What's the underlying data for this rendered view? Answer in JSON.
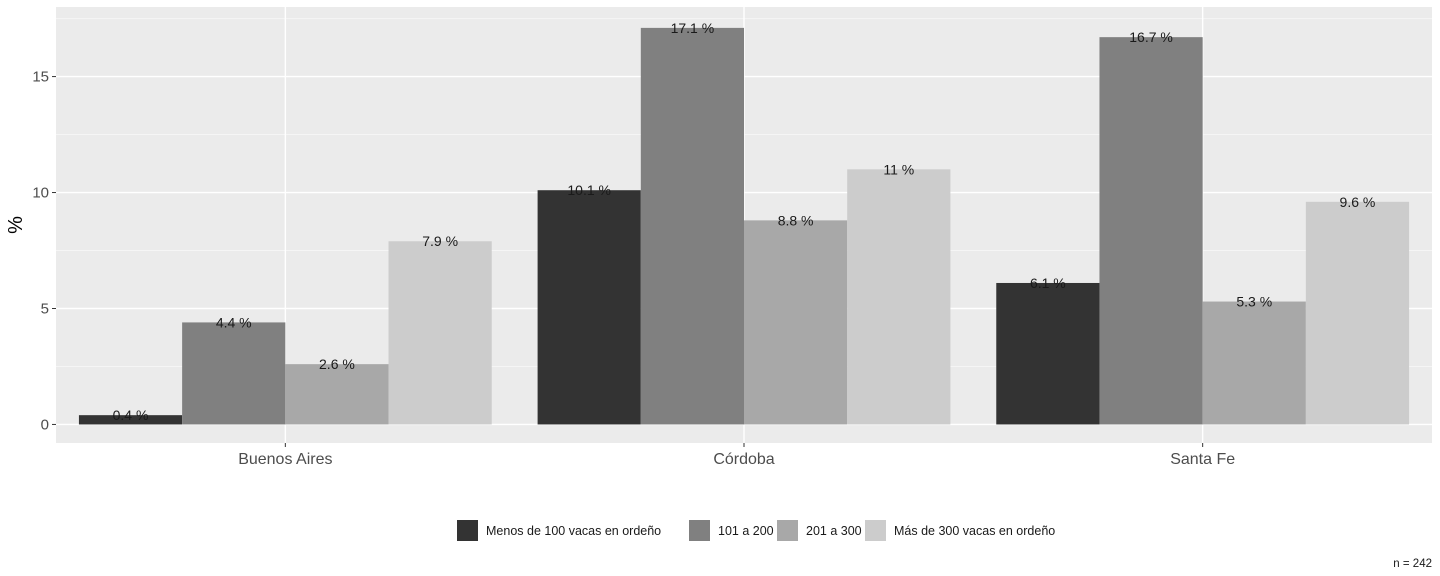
{
  "chart_data": {
    "type": "bar",
    "title": "",
    "xlabel": "",
    "ylabel": "%",
    "ylim": [
      -0.8,
      18.0
    ],
    "yticks": [
      0,
      5,
      10,
      15
    ],
    "grid": true,
    "legend_position": "bottom",
    "categories": [
      "Buenos Aires",
      "Córdoba",
      "Santa Fe"
    ],
    "series": [
      {
        "name": "Menos de 100 vacas en ordeño",
        "color": "#333333",
        "values": [
          0.4,
          10.1,
          6.1
        ],
        "labels": [
          "0.4 %",
          "10.1 %",
          "6.1 %"
        ]
      },
      {
        "name": "101 a 200",
        "color": "#808080",
        "values": [
          4.4,
          17.1,
          16.7
        ],
        "labels": [
          "4.4 %",
          "17.1 %",
          "16.7 %"
        ]
      },
      {
        "name": "201 a 300",
        "color": "#a8a8a8",
        "values": [
          2.6,
          8.8,
          5.3
        ],
        "labels": [
          "2.6 %",
          "8.8 %",
          "5.3 %"
        ]
      },
      {
        "name": "Más de 300 vacas en ordeño",
        "color": "#cccccc",
        "values": [
          7.9,
          11.0,
          9.6
        ],
        "labels": [
          "7.9 %",
          "11 %",
          "9.6 %"
        ]
      }
    ],
    "caption": "n = 242"
  }
}
